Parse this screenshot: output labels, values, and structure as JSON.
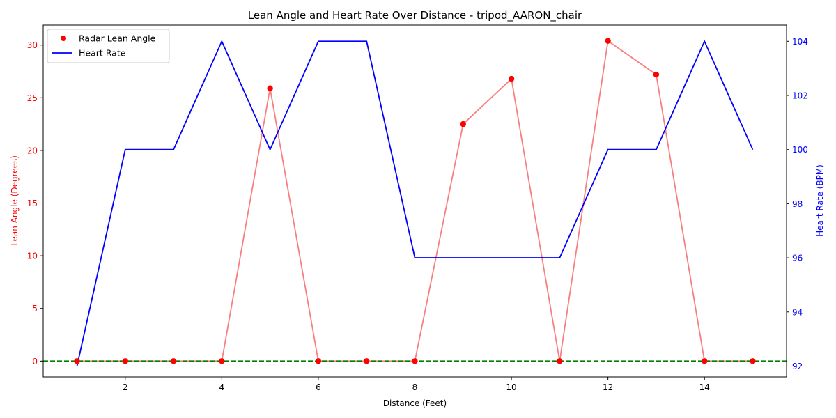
{
  "chart_data": {
    "type": "line",
    "title": "Lean Angle and Heart Rate Over Distance - tripod_AARON_chair",
    "xlabel": "Distance (Feet)",
    "ylabel_left": "Lean Angle (Degrees)",
    "ylabel_right": "Heart Rate (BPM)",
    "xlim": [
      0.3,
      15.7
    ],
    "ylim_left": [
      -1.5,
      31.9
    ],
    "ylim_right": [
      91.6,
      104.6
    ],
    "x_ticks": [
      "2",
      "4",
      "6",
      "8",
      "10",
      "12",
      "14"
    ],
    "y_left_ticks": [
      "0",
      "5",
      "10",
      "15",
      "20",
      "25",
      "30"
    ],
    "y_right_ticks": [
      "92",
      "94",
      "96",
      "98",
      "100",
      "102",
      "104"
    ],
    "x": [
      1,
      2,
      3,
      4,
      5,
      6,
      7,
      8,
      9,
      10,
      11,
      12,
      13,
      14,
      15
    ],
    "series": [
      {
        "name": "Radar Lean Angle",
        "axis": "left",
        "style": "scatter+line",
        "color": "#ff0000",
        "line_color": "#f77f7f",
        "values": [
          0,
          0,
          0,
          0,
          25.9,
          0,
          0,
          0,
          22.5,
          26.8,
          0,
          30.4,
          27.2,
          0,
          0
        ]
      },
      {
        "name": "Heart Rate",
        "axis": "right",
        "style": "line",
        "color": "#0000ff",
        "values": [
          92,
          100,
          100,
          104,
          100,
          104,
          104,
          96,
          96,
          96,
          96,
          100,
          100,
          104,
          100
        ]
      }
    ],
    "reference_line": {
      "axis": "left",
      "y": 0,
      "color": "#008000",
      "style": "dashed"
    },
    "legend": {
      "placement": "top-left",
      "entries": [
        "Radar Lean Angle",
        "Heart Rate"
      ]
    },
    "grid": false
  }
}
